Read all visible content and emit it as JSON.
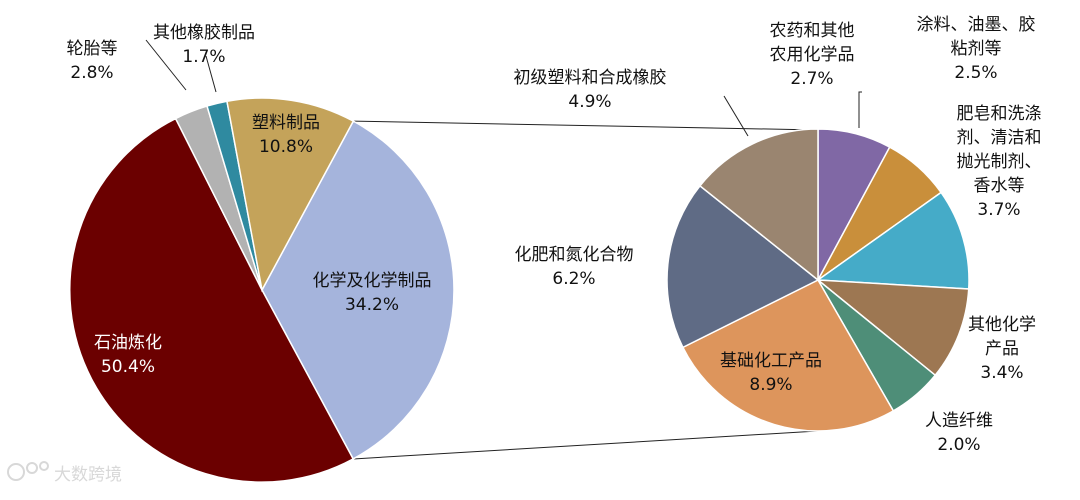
{
  "chart_data": [
    {
      "type": "pie",
      "slices": [
        {
          "name": "化学及化学制品",
          "value": 34.2,
          "label": "化学及化学制品",
          "value_text": "34.2%",
          "color": "#a5b4dc"
        },
        {
          "name": "石油炼化",
          "value": 50.4,
          "label": "石油炼化",
          "value_text": "50.4%",
          "color": "#6b0000"
        },
        {
          "name": "轮胎等",
          "value": 2.8,
          "label": "轮胎等",
          "value_text": "2.8%",
          "color": "#b2b2b2"
        },
        {
          "name": "其他橡胶制品",
          "value": 1.7,
          "label": "其他橡胶制品",
          "value_text": "1.7%",
          "color": "#2f8aa0"
        },
        {
          "name": "塑料制品",
          "value": 10.8,
          "label": "塑料制品",
          "value_text": "10.8%",
          "color": "#c4a35a"
        }
      ]
    },
    {
      "type": "pie",
      "breakdown_of": "化学及化学制品",
      "slices": [
        {
          "name": "农药和其他农用化学品",
          "value": 2.7,
          "label_lines": [
            "农药和其他",
            "农用化学品"
          ],
          "value_text": "2.7%",
          "color": "#8068a5"
        },
        {
          "name": "涂料、油墨、胶粘剂等",
          "value": 2.5,
          "label_lines": [
            "涂料、油墨、胶",
            "粘剂等"
          ],
          "value_text": "2.5%",
          "color": "#c98f3b"
        },
        {
          "name": "肥皂和洗涤剂、清洁和抛光制剂、香水等",
          "value": 3.7,
          "label_lines": [
            "肥皂和洗涤",
            "剂、清洁和",
            "抛光制剂、",
            "香水等"
          ],
          "value_text": "3.7%",
          "color": "#45abc8"
        },
        {
          "name": "其他化学产品",
          "value": 3.4,
          "label_lines": [
            "其他化学",
            "产品"
          ],
          "value_text": "3.4%",
          "color": "#9d7752"
        },
        {
          "name": "人造纤维",
          "value": 2.0,
          "label_lines": [
            "人造纤维"
          ],
          "value_text": "2.0%",
          "color": "#4e8e78"
        },
        {
          "name": "基础化工产品",
          "value": 8.9,
          "label_lines": [
            "基础化工产品"
          ],
          "value_text": "8.9%",
          "color": "#dd955c"
        },
        {
          "name": "化肥和氮化合物",
          "value": 6.2,
          "label_lines": [
            "化肥和氮化合物"
          ],
          "value_text": "6.2%",
          "color": "#5f6b85"
        },
        {
          "name": "初级塑料和合成橡胶",
          "value": 4.9,
          "label_lines": [
            "初级塑料和合成橡胶"
          ],
          "value_text": "4.9%",
          "color": "#9a8570"
        }
      ]
    }
  ],
  "watermark": "大数跨境"
}
